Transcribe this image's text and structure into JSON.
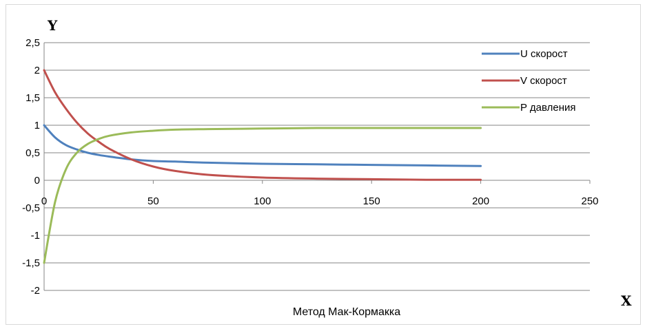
{
  "chart_data": {
    "type": "line",
    "title": "",
    "caption": "Метод Мак-Кормакка",
    "xlabel": "X",
    "ylabel": "Y",
    "xlim": [
      0,
      250
    ],
    "ylim": [
      -2,
      2.5
    ],
    "xticks": [
      "0",
      "50",
      "100",
      "150",
      "200",
      "250"
    ],
    "yticks": [
      "2,5",
      "2",
      "1,5",
      "1",
      "0,5",
      "0",
      "-0,5",
      "-1",
      "-1,5",
      "-2"
    ],
    "grid": "horizontal",
    "legend_position": "right",
    "x": [
      0,
      5,
      10,
      15,
      20,
      25,
      30,
      40,
      50,
      60,
      75,
      100,
      125,
      150,
      175,
      200
    ],
    "series": [
      {
        "name": "U скорост",
        "color": "#4f81bd",
        "values": [
          1.0,
          0.78,
          0.64,
          0.56,
          0.5,
          0.46,
          0.43,
          0.38,
          0.35,
          0.34,
          0.32,
          0.3,
          0.29,
          0.28,
          0.27,
          0.26
        ]
      },
      {
        "name": "V скорост",
        "color": "#c0504d",
        "values": [
          2.0,
          1.6,
          1.3,
          1.05,
          0.85,
          0.7,
          0.57,
          0.38,
          0.25,
          0.17,
          0.1,
          0.05,
          0.03,
          0.02,
          0.01,
          0.01
        ]
      },
      {
        "name": "P давления",
        "color": "#9bbb59",
        "values": [
          -1.5,
          -0.4,
          0.2,
          0.5,
          0.66,
          0.75,
          0.81,
          0.87,
          0.9,
          0.92,
          0.93,
          0.94,
          0.95,
          0.95,
          0.95,
          0.95
        ]
      }
    ]
  }
}
